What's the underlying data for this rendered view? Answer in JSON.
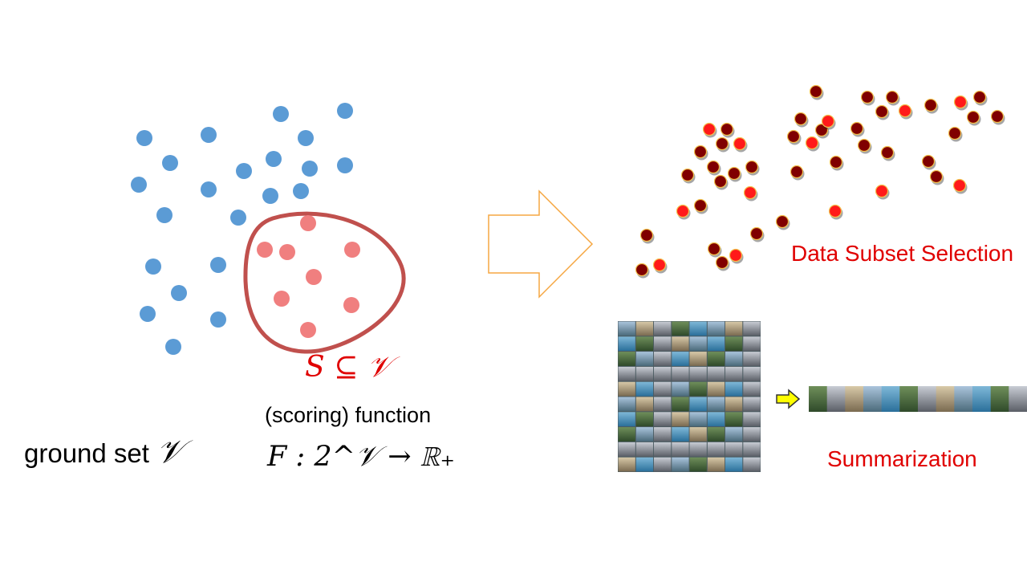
{
  "colors": {
    "ground_point": "#5b9bd5",
    "subset_point": "#f07f7f",
    "subset_outline": "#c0504d",
    "arrow_outline": "#f5a742",
    "selected_point": "#ff1a1a",
    "unselected_point": "#800000",
    "label_red": "#e00000",
    "small_arrow_fill": "#ffff00"
  },
  "ground_set": {
    "label": "ground set",
    "symbol": "𝒱"
  },
  "subset": {
    "label": "S ⊆ 𝒱"
  },
  "scoring_function": {
    "label": "(scoring) function",
    "formula": "F : 2^𝒱 → ℝ₊"
  },
  "applications": {
    "data_subset_selection": "Data Subset Selection",
    "summarization": "Summarization"
  },
  "icons": {
    "big_arrow": "right-arrow-outline-icon",
    "small_arrow": "right-arrow-yellow-icon"
  }
}
